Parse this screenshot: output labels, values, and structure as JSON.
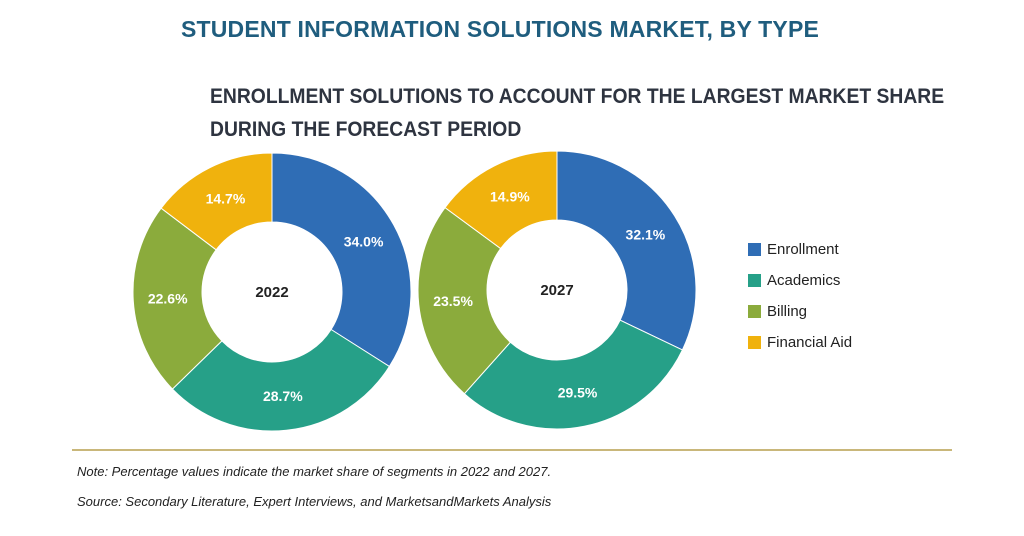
{
  "header": {
    "title": "STUDENT INFORMATION SOLUTIONS MARKET, BY TYPE",
    "subtitle_line1": "ENROLLMENT SOLUTIONS TO ACCOUNT FOR THE LARGEST MARKET SHARE",
    "subtitle_line2": "DURING THE FORECAST PERIOD"
  },
  "chart_data": [
    {
      "type": "pie",
      "center_label": "2022",
      "categories": [
        "Enrollment",
        "Academics",
        "Billing",
        "Financial Aid"
      ],
      "values": [
        34.0,
        28.7,
        22.6,
        14.7
      ],
      "labels": [
        "34.0%",
        "28.7%",
        "22.6%",
        "14.7%"
      ]
    },
    {
      "type": "pie",
      "center_label": "2027",
      "categories": [
        "Enrollment",
        "Academics",
        "Billing",
        "Financial Aid"
      ],
      "values": [
        32.1,
        29.5,
        23.5,
        14.9
      ],
      "labels": [
        "32.1%",
        "29.5%",
        "23.5%",
        "14.9%"
      ]
    }
  ],
  "legend": {
    "items": [
      {
        "label": "Enrollment",
        "color": "#2f6db5"
      },
      {
        "label": "Academics",
        "color": "#26a088"
      },
      {
        "label": "Billing",
        "color": "#8bab3c"
      },
      {
        "label": "Financial Aid",
        "color": "#f0b20d"
      }
    ]
  },
  "footer": {
    "note": "Note: Percentage values indicate the market share of segments in 2022 and 2027.",
    "source": "Source: Secondary Literature, Expert Interviews, and MarketsandMarkets Analysis"
  }
}
